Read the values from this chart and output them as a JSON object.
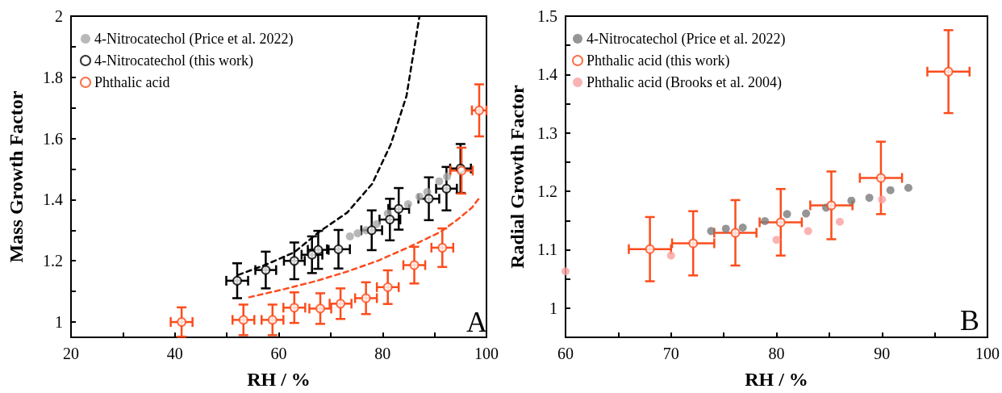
{
  "chart_data": [
    {
      "type": "scatter",
      "xlabel": "RH / %",
      "ylabel": "Mass Growth Factor",
      "xlim": [
        20,
        100
      ],
      "ylim": [
        0.95,
        2
      ],
      "xticks": [
        20,
        {
          "value": 30,
          "label": null
        },
        40,
        {
          "value": 50,
          "label": null
        },
        60,
        {
          "value": 70,
          "label": null
        },
        80,
        {
          "value": 90,
          "label": null
        },
        100
      ],
      "yticks": [
        1,
        {
          "value": 1.1,
          "label": null
        },
        1.2,
        {
          "value": 1.3,
          "label": null
        },
        1.4,
        {
          "value": 1.5,
          "label": null
        },
        1.6,
        {
          "value": 1.7,
          "label": null
        },
        1.8,
        {
          "value": 1.9,
          "label": null
        },
        2
      ],
      "legend": "top left",
      "marker": "circle",
      "annotations": [
        "A"
      ],
      "series": [
        {
          "name": "4-Nitrocatechol (Price et al. 2022)",
          "color": "#a6a6a6",
          "x": [
            73.7,
            75.2,
            76.8,
            78.8,
            81.0,
            82.6,
            84.9,
            87.1,
            88.6,
            90.9,
            92.4
          ],
          "values": [
            1.28,
            1.29,
            1.3,
            1.32,
            1.355,
            null,
            1.385,
            1.41,
            1.425,
            1.46,
            1.475
          ]
        },
        {
          "name": "4-Nitrocatechol (this work)",
          "color": "#000000",
          "x": [
            52.0,
            57.5,
            63.0,
            66.4,
            67.6,
            71.5,
            77.9,
            81.4,
            83.1,
            88.9,
            92.3,
            95.0
          ],
          "values": [
            1.135,
            1.17,
            1.2,
            1.22,
            1.236,
            1.238,
            1.3,
            1.335,
            1.37,
            1.403,
            1.436,
            1.502
          ],
          "errors": [
            0.057,
            0.06,
            0.06,
            0.06,
            0.062,
            0.063,
            0.065,
            0.068,
            0.068,
            0.07,
            0.071,
            0.08
          ],
          "xerrors": [
            2.1,
            2.0,
            2.0,
            2.0,
            2.0,
            2.2,
            2.0,
            2.0,
            2.0,
            2.0,
            2.0,
            2.0
          ]
        },
        {
          "name": "Phthalic acid",
          "color": "#fc4c1c",
          "x": [
            41.3,
            53.2,
            58.8,
            63.0,
            68.0,
            71.9,
            76.8,
            81.0,
            86.1,
            91.5,
            95.2,
            98.6
          ],
          "values": [
            1.0,
            1.007,
            1.007,
            1.047,
            1.044,
            1.06,
            1.078,
            1.114,
            1.186,
            1.243,
            1.495,
            1.692
          ],
          "errors": [
            0.048,
            0.05,
            0.05,
            0.05,
            0.05,
            0.05,
            0.052,
            0.055,
            0.06,
            0.063,
            0.075,
            0.085
          ],
          "xerrors": [
            2.1,
            2.1,
            2.1,
            2.1,
            2.1,
            2.1,
            2.1,
            2.1,
            2.1,
            2.1,
            2.15,
            1.4
          ]
        },
        {
          "type": "line",
          "color": "#000000",
          "line_style": "dashed",
          "marker": "none",
          "x": [
            52.2,
            57.6,
            63.0,
            67.8,
            73.2,
            78.0,
            81.6,
            84.6,
            87.1
          ],
          "values": [
            1.154,
            1.188,
            1.228,
            1.295,
            1.358,
            1.452,
            1.582,
            1.739,
            2.0
          ]
        },
        {
          "type": "line",
          "color": "#fc4c1c",
          "line_style": "dashed",
          "marker": "none",
          "x": [
            54.3,
            61.2,
            67.2,
            73.2,
            79.2,
            85.2,
            91.2,
            94.2,
            97.2,
            98.8
          ],
          "values": [
            1.081,
            1.108,
            1.134,
            1.165,
            1.201,
            1.246,
            1.295,
            1.332,
            1.374,
            1.41
          ]
        }
      ]
    },
    {
      "type": "scatter",
      "xlabel": "RH / %",
      "ylabel": "Radial Growth Factor",
      "xlim": [
        60,
        100
      ],
      "ylim": [
        0.95,
        1.5
      ],
      "xticks": [
        60,
        {
          "value": 65,
          "label": null
        },
        70,
        {
          "value": 75,
          "label": null
        },
        80,
        {
          "value": 85,
          "label": null
        },
        90,
        {
          "value": 95,
          "label": null
        },
        100
      ],
      "yticks": [
        1,
        {
          "value": 1.05,
          "label": null
        },
        1.1,
        {
          "value": 1.15,
          "label": null
        },
        1.2,
        {
          "value": 1.25,
          "label": null
        },
        1.3,
        {
          "value": 1.35,
          "label": null
        },
        1.4,
        {
          "value": 1.45,
          "label": null
        },
        1.5
      ],
      "legend": "top left",
      "marker": "circle",
      "annotations": [
        "B"
      ],
      "series": [
        {
          "name": "4-Nitrocatechol (Price et al. 2022)",
          "color": "#7a7a7a",
          "x": [
            73.8,
            75.2,
            76.8,
            78.9,
            81.0,
            82.8,
            84.7,
            87.1,
            88.8,
            90.8,
            92.5
          ],
          "values": [
            1.132,
            1.136,
            1.138,
            1.149,
            1.161,
            1.162,
            1.172,
            1.184,
            1.189,
            1.202,
            1.206
          ]
        },
        {
          "name": "Phthalic acid (this work)",
          "color": "#fc4c1c",
          "x": [
            68.0,
            72.1,
            76.1,
            80.4,
            85.2,
            89.9,
            96.3
          ],
          "values": [
            1.101,
            1.111,
            1.129,
            1.147,
            1.176,
            1.223,
            1.405
          ],
          "errors": [
            0.055,
            0.055,
            0.056,
            0.057,
            0.058,
            0.062,
            0.071
          ],
          "xerrors": [
            2.0,
            2.0,
            2.0,
            2.0,
            2.0,
            2.0,
            2.0
          ]
        },
        {
          "name": "Phthalic acid (Brooks et al. 2004)",
          "color": "#f9a0a0",
          "x": [
            60.0,
            70.0,
            80.0,
            83.0,
            86.0,
            90.0
          ],
          "values": [
            1.063,
            1.09,
            1.117,
            1.132,
            1.148,
            1.186
          ]
        }
      ]
    }
  ]
}
